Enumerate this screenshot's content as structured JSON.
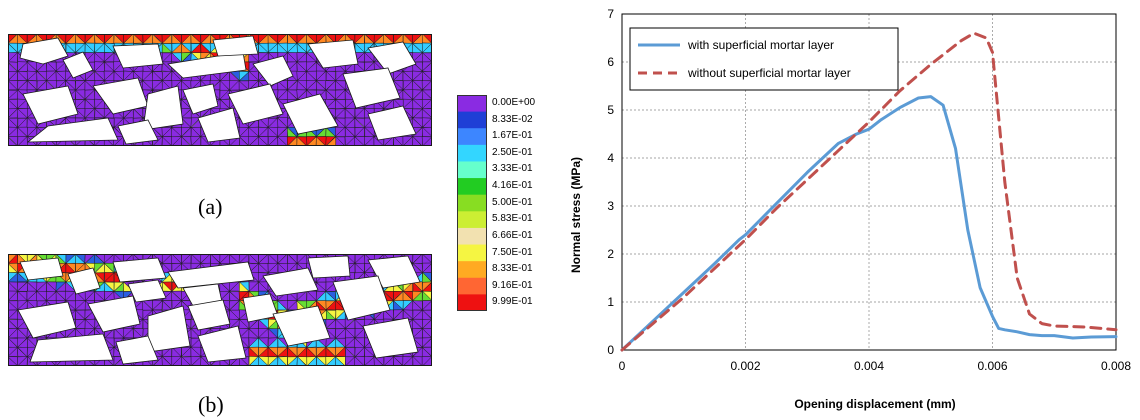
{
  "left_panel": {
    "captions": {
      "a": "(a)",
      "b": "(b)"
    },
    "colorbar": {
      "labels": [
        "0.00E+00",
        "8.33E-02",
        "1.67E-01",
        "2.50E-01",
        "3.33E-01",
        "4.16E-01",
        "5.00E-01",
        "5.83E-01",
        "6.66E-01",
        "7.50E-01",
        "8.33E-01",
        "9.16E-01",
        "9.99E-01"
      ],
      "colors": [
        "#8a2be2",
        "#1f3fd6",
        "#3d86ff",
        "#33d6ff",
        "#66ffcc",
        "#22cc22",
        "#88dd22",
        "#ccee33",
        "#f2e1b0",
        "#f5f542",
        "#ffaa22",
        "#ff6633",
        "#ee1111"
      ]
    }
  },
  "chart_data": {
    "type": "line",
    "xlabel": "Opening displacement (mm)",
    "ylabel": "Normal stress (MPa)",
    "xlim": [
      0,
      0.008
    ],
    "ylim": [
      0,
      7
    ],
    "xticks": [
      "0",
      "0.002",
      "0.004",
      "0.006",
      "0.008"
    ],
    "yticks": [
      "0",
      "1",
      "2",
      "3",
      "4",
      "5",
      "6",
      "7"
    ],
    "grid": true,
    "legend_position": "top-left",
    "series": [
      {
        "name": "with superficial mortar layer",
        "color": "#5b9bd5",
        "style": "solid",
        "x": [
          0,
          0.0005,
          0.001,
          0.0015,
          0.0019,
          0.002,
          0.0025,
          0.003,
          0.0035,
          0.0038,
          0.004,
          0.0042,
          0.0045,
          0.0048,
          0.005,
          0.0052,
          0.0054,
          0.0056,
          0.0058,
          0.006,
          0.0061,
          0.0062,
          0.0064,
          0.0066,
          0.0068,
          0.007,
          0.0073,
          0.0076,
          0.008
        ],
        "y": [
          0,
          0.6,
          1.2,
          1.8,
          2.3,
          2.4,
          3.05,
          3.7,
          4.3,
          4.5,
          4.6,
          4.8,
          5.05,
          5.25,
          5.28,
          5.1,
          4.2,
          2.5,
          1.3,
          0.7,
          0.45,
          0.42,
          0.38,
          0.32,
          0.3,
          0.3,
          0.25,
          0.27,
          0.28
        ]
      },
      {
        "name": "without superficial mortar layer",
        "color": "#c0504d",
        "style": "dashed",
        "x": [
          0,
          0.0005,
          0.001,
          0.0015,
          0.002,
          0.0025,
          0.003,
          0.0035,
          0.004,
          0.0045,
          0.005,
          0.0055,
          0.0057,
          0.0059,
          0.006,
          0.0062,
          0.0064,
          0.0066,
          0.0068,
          0.007,
          0.0075,
          0.008
        ],
        "y": [
          0,
          0.55,
          1.1,
          1.7,
          2.3,
          2.95,
          3.55,
          4.15,
          4.75,
          5.4,
          5.95,
          6.45,
          6.6,
          6.5,
          6.2,
          3.5,
          1.5,
          0.75,
          0.55,
          0.5,
          0.48,
          0.42
        ]
      }
    ]
  }
}
